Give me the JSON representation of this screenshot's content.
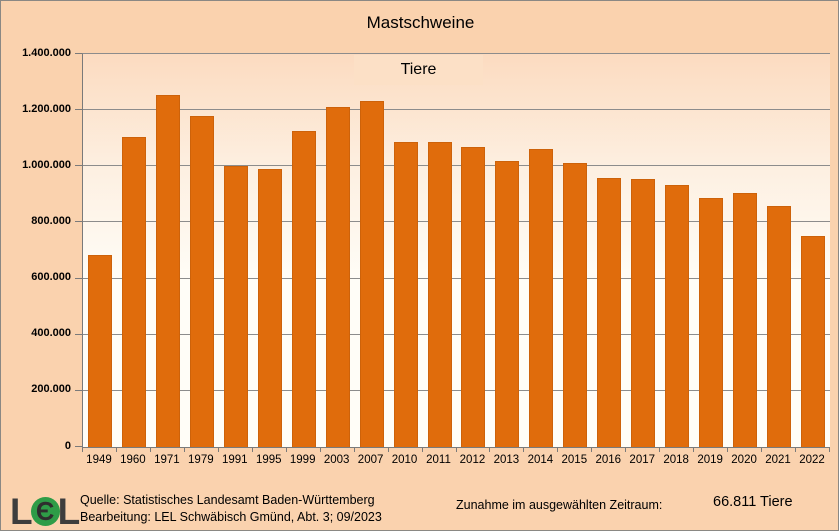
{
  "title": "Mastschweine",
  "legend": {
    "label": "Tiere"
  },
  "chart_data": {
    "type": "bar",
    "title": "Mastschweine",
    "series_name": "Tiere",
    "categories": [
      "1949",
      "1960",
      "1971",
      "1979",
      "1991",
      "1995",
      "1999",
      "2003",
      "2007",
      "2010",
      "2011",
      "2012",
      "2013",
      "2014",
      "2015",
      "2016",
      "2017",
      "2018",
      "2019",
      "2020",
      "2021",
      "2022"
    ],
    "values": [
      684000,
      1105000,
      1255000,
      1180000,
      1002000,
      990000,
      1127000,
      1212000,
      1233000,
      1086000,
      1088000,
      1070000,
      1020000,
      1062000,
      1012000,
      960000,
      955000,
      935000,
      886000,
      905000,
      857000,
      750811
    ],
    "xlabel": "",
    "ylabel": "",
    "ylim": [
      0,
      1400000
    ],
    "ytick_interval": 200000,
    "ytick_labels": [
      "0",
      "200.000",
      "400.000",
      "600.000",
      "800.000",
      "1.000.000",
      "1.200.000",
      "1.400.000"
    ],
    "grid": true,
    "legend_position": "top-center"
  },
  "footer": {
    "source": "Quelle: Statistisches Landesamt Baden-Württemberg",
    "editing": "Bearbeitung: LEL Schwäbisch Gmünd, Abt. 3; 09/2023",
    "summary_label": "Zunahme im ausgewählten Zeitraum:",
    "summary_value": "66.811 Tiere",
    "logo_left": "L",
    "logo_mid": "Є",
    "logo_right": "L"
  },
  "colors": {
    "background": "#fad2ae",
    "plot_gradient_top": "#fcdbc0",
    "plot_gradient_bottom": "#fffdf7",
    "legend_background": "#fce0c6",
    "bar": "#e06c0c",
    "gridline": "#8c8c8c",
    "axis": "#7a7a7a",
    "text": "#000000",
    "logo_green": "#2e9c47",
    "logo_gray": "#3d3d3d"
  }
}
